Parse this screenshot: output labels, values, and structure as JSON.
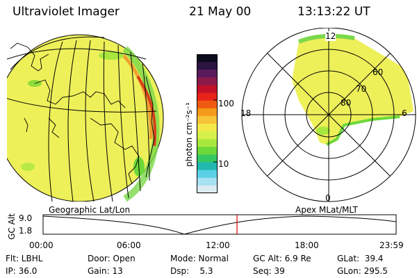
{
  "header": {
    "title": "Ultraviolet Imager",
    "date": "21 May 00",
    "time": "13:13:22 UT"
  },
  "colorbar": {
    "unit": "photon cm⁻²s⁻¹",
    "ticks": [
      "100",
      "10"
    ],
    "colors": [
      "#0b0b1a",
      "#2c1440",
      "#5a1b5c",
      "#8a1a4a",
      "#c0102a",
      "#e8241a",
      "#f05a10",
      "#f59a1a",
      "#f7c437",
      "#f2e84a",
      "#d6f04a",
      "#a8e83e",
      "#6dd83a",
      "#35c862",
      "#22b8b0",
      "#5ad0e8",
      "#a6e2f2",
      "#dcecf0"
    ]
  },
  "globe_panel": {
    "label": "Geographic Lat/Lon",
    "fill_color": "#eef05a",
    "limb_color": "#d8401a"
  },
  "polar_panel": {
    "label": "Apex MLat/MLT",
    "mlt_labels": {
      "top": "12",
      "left": "18",
      "right": "6",
      "bottom": "0"
    },
    "mlat_labels": [
      "60",
      "70",
      "80"
    ]
  },
  "altitude_plot": {
    "ylabel": "GC Alt",
    "yticks": [
      "9.0",
      "1.8"
    ],
    "xticks": [
      "00:00",
      "06:00",
      "12:00",
      "18:00",
      "23:59"
    ],
    "marker_color": "#dd0000"
  },
  "info": {
    "filter": "Flt: LBHL",
    "ip": "IP: 36.0",
    "door": "Door: Open",
    "gain": "Gain: 13",
    "mode": "Mode: Normal",
    "dsp": "Dsp:    5.3",
    "gc_alt": "GC Alt: 6.9 Re",
    "seq": "Seq: 39",
    "glat": "GLat:  39.4",
    "glon": "GLon: 295.5"
  }
}
